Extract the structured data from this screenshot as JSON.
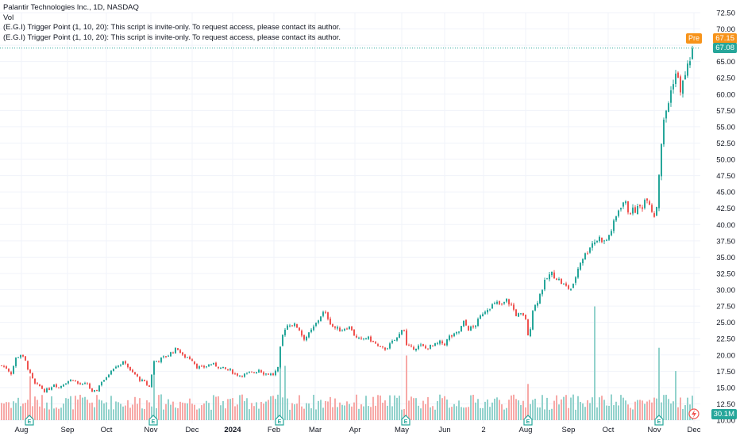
{
  "legend": {
    "title": "Palantir Technologies Inc., 1D, NASDAQ",
    "vol": "Vol",
    "script1": "(E.G.I) Trigger Point  (1, 10, 20): This script is invite-only. To request access, please contact its author.",
    "script2": "(E.G.I) Trigger Point  (1, 10, 20): This script is invite-only. To request access, please contact its author."
  },
  "price_badges": {
    "pre_label": "Pre",
    "pre_value": "67.15",
    "last_value": "67.08",
    "volume_value": "30.1M"
  },
  "colors": {
    "up": "#26a69a",
    "down": "#ef5350",
    "vol_up": "#92d2cc",
    "vol_down": "#f7a9a7",
    "pre": "#f7931a",
    "last": "#26a69a"
  },
  "chart_data": {
    "type": "candlestick",
    "ylim": [
      10,
      73
    ],
    "y_ticks": [
      "72.50",
      "70.00",
      "67.50",
      "65.00",
      "62.50",
      "60.00",
      "57.50",
      "55.00",
      "52.50",
      "50.00",
      "47.50",
      "45.00",
      "42.50",
      "40.00",
      "37.50",
      "35.00",
      "32.50",
      "30.00",
      "27.50",
      "25.00",
      "22.50",
      "20.00",
      "17.50",
      "15.00",
      "12.50",
      "10.00"
    ],
    "x_ticks": [
      "Aug",
      "Sep",
      "Oct",
      "Nov",
      "Dec",
      "2024",
      "Feb",
      "Mar",
      "Apr",
      "May",
      "Jun",
      "2",
      "Aug",
      "Sep",
      "Oct",
      "Nov",
      "Dec"
    ],
    "earnings_markers": [
      "Aug",
      "Nov",
      "Feb",
      "May",
      "Aug",
      "Nov"
    ],
    "close_path": [
      [
        0,
        18.5
      ],
      [
        8,
        18.0
      ],
      [
        14,
        17.2
      ],
      [
        20,
        19.5
      ],
      [
        26,
        20.1
      ],
      [
        32,
        19.0
      ],
      [
        38,
        17.0
      ],
      [
        44,
        15.5
      ],
      [
        50,
        15.2
      ],
      [
        56,
        14.5
      ],
      [
        62,
        14.8
      ],
      [
        68,
        15.6
      ],
      [
        74,
        15.0
      ],
      [
        80,
        15.6
      ],
      [
        86,
        16.0
      ],
      [
        92,
        16.3
      ],
      [
        98,
        15.6
      ],
      [
        104,
        15.4
      ],
      [
        110,
        15.6
      ],
      [
        116,
        14.2
      ],
      [
        122,
        14.6
      ],
      [
        128,
        16.0
      ],
      [
        134,
        16.4
      ],
      [
        140,
        17.8
      ],
      [
        146,
        18.4
      ],
      [
        152,
        18.6
      ],
      [
        158,
        18.9
      ],
      [
        164,
        17.5
      ],
      [
        170,
        17.0
      ],
      [
        176,
        16.2
      ],
      [
        182,
        15.8
      ],
      [
        188,
        15.1
      ],
      [
        194,
        19.0
      ],
      [
        200,
        19.2
      ],
      [
        206,
        19.6
      ],
      [
        212,
        20.0
      ],
      [
        218,
        20.6
      ],
      [
        224,
        21.0
      ],
      [
        230,
        19.8
      ],
      [
        236,
        19.7
      ],
      [
        242,
        19.3
      ],
      [
        248,
        18.2
      ],
      [
        254,
        18.0
      ],
      [
        260,
        18.3
      ],
      [
        266,
        18.6
      ],
      [
        272,
        18.4
      ],
      [
        278,
        18.0
      ],
      [
        284,
        17.8
      ],
      [
        290,
        17.6
      ],
      [
        296,
        17.1
      ],
      [
        302,
        16.9
      ],
      [
        308,
        17.0
      ],
      [
        314,
        17.2
      ],
      [
        320,
        17.3
      ],
      [
        326,
        17.8
      ],
      [
        332,
        17.2
      ],
      [
        338,
        17.1
      ],
      [
        344,
        17.0
      ],
      [
        350,
        17.9
      ],
      [
        354,
        22.0
      ],
      [
        358,
        24.0
      ],
      [
        364,
        24.8
      ],
      [
        370,
        24.6
      ],
      [
        376,
        24.2
      ],
      [
        382,
        22.5
      ],
      [
        388,
        23.0
      ],
      [
        394,
        24.0
      ],
      [
        400,
        25.2
      ],
      [
        406,
        26.5
      ],
      [
        412,
        26.0
      ],
      [
        418,
        24.5
      ],
      [
        424,
        24.0
      ],
      [
        430,
        23.8
      ],
      [
        436,
        24.3
      ],
      [
        442,
        24.2
      ],
      [
        448,
        22.6
      ],
      [
        454,
        22.2
      ],
      [
        460,
        22.7
      ],
      [
        466,
        22.4
      ],
      [
        472,
        21.8
      ],
      [
        478,
        21.0
      ],
      [
        484,
        20.9
      ],
      [
        490,
        21.4
      ],
      [
        496,
        22.2
      ],
      [
        502,
        22.8
      ],
      [
        508,
        24.8
      ],
      [
        512,
        21.4
      ],
      [
        518,
        21.0
      ],
      [
        524,
        21.2
      ],
      [
        530,
        21.4
      ],
      [
        536,
        21.0
      ],
      [
        542,
        21.3
      ],
      [
        548,
        21.5
      ],
      [
        554,
        21.9
      ],
      [
        560,
        21.7
      ],
      [
        566,
        22.8
      ],
      [
        572,
        23.0
      ],
      [
        578,
        23.6
      ],
      [
        584,
        25.0
      ],
      [
        590,
        24.0
      ],
      [
        596,
        24.2
      ],
      [
        602,
        25.2
      ],
      [
        608,
        26.5
      ],
      [
        614,
        27.2
      ],
      [
        620,
        27.6
      ],
      [
        626,
        27.9
      ],
      [
        632,
        27.6
      ],
      [
        638,
        28.4
      ],
      [
        644,
        27.6
      ],
      [
        650,
        26.2
      ],
      [
        656,
        26.1
      ],
      [
        662,
        25.6
      ],
      [
        666,
        21.8
      ],
      [
        670,
        26.8
      ],
      [
        676,
        28.0
      ],
      [
        682,
        30.0
      ],
      [
        688,
        31.6
      ],
      [
        694,
        32.5
      ],
      [
        700,
        32.0
      ],
      [
        706,
        31.2
      ],
      [
        712,
        30.5
      ],
      [
        718,
        30.1
      ],
      [
        722,
        30.6
      ],
      [
        726,
        32.6
      ],
      [
        732,
        34.7
      ],
      [
        738,
        35.5
      ],
      [
        744,
        37.0
      ],
      [
        750,
        37.5
      ],
      [
        756,
        38.0
      ],
      [
        762,
        37.2
      ],
      [
        768,
        38.6
      ],
      [
        774,
        40.4
      ],
      [
        780,
        42.7
      ],
      [
        786,
        43.6
      ],
      [
        792,
        42.0
      ],
      [
        798,
        42.1
      ],
      [
        804,
        42.5
      ],
      [
        810,
        43.0
      ],
      [
        814,
        44.6
      ],
      [
        818,
        43.5
      ],
      [
        822,
        41.8
      ],
      [
        826,
        41.2
      ],
      [
        830,
        48.0
      ],
      [
        834,
        54.2
      ],
      [
        838,
        57.0
      ],
      [
        842,
        58.8
      ],
      [
        846,
        61.0
      ],
      [
        850,
        63.5
      ],
      [
        854,
        62.0
      ],
      [
        858,
        60.5
      ],
      [
        862,
        62.6
      ],
      [
        866,
        64.2
      ],
      [
        870,
        66.0
      ],
      [
        874,
        67.1
      ]
    ],
    "volume_scale_million": {
      "max": 230,
      "last": 30.1
    },
    "volume_spikes": [
      {
        "x": 37,
        "v": 85
      },
      {
        "x": 193,
        "v": 110
      },
      {
        "x": 352,
        "v": 135
      },
      {
        "x": 358,
        "v": 105
      },
      {
        "x": 511,
        "v": 125
      },
      {
        "x": 665,
        "v": 70
      },
      {
        "x": 750,
        "v": 220
      },
      {
        "x": 830,
        "v": 140
      },
      {
        "x": 852,
        "v": 95
      }
    ]
  }
}
